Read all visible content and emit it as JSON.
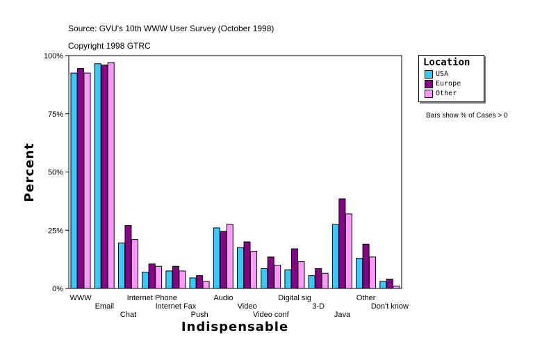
{
  "header": {
    "source": "Source: GVU's 10th WWW User Survey (October 1998)",
    "copyright": "Copyright 1998 GTRC"
  },
  "note": "Bars show % of Cases > 0",
  "colors": {
    "USA": "#33ccff",
    "Europe": "#880088",
    "Other": "#ff99ff"
  },
  "chart_data": {
    "type": "bar",
    "xlabel": "Indispensable",
    "ylabel": "Percent",
    "ylim": [
      0,
      100
    ],
    "yticks": [
      0,
      25,
      50,
      75,
      100
    ],
    "ytick_labels": [
      "0%",
      "25%",
      "50%",
      "75%",
      "100%"
    ],
    "legend_title": "Location",
    "legend_position": "right",
    "grid": false,
    "categories": [
      "WWW",
      "Email",
      "Chat",
      "Internet Phone",
      "Internet Fax",
      "Push",
      "Audio",
      "Video",
      "Video conf",
      "Digital sig",
      "3-D",
      "Java",
      "Other",
      "Don't know"
    ],
    "series": [
      {
        "name": "USA",
        "values": [
          92.5,
          96.5,
          19.5,
          7.0,
          7.5,
          4.5,
          26.0,
          17.5,
          8.5,
          8.0,
          5.5,
          27.5,
          13.0,
          3.0
        ]
      },
      {
        "name": "Europe",
        "values": [
          94.5,
          96.0,
          27.0,
          10.5,
          9.5,
          5.5,
          24.5,
          20.0,
          13.5,
          17.0,
          8.5,
          38.5,
          19.0,
          4.0
        ]
      },
      {
        "name": "Other",
        "values": [
          92.5,
          97.0,
          21.0,
          9.5,
          7.5,
          3.0,
          27.5,
          16.0,
          10.0,
          11.5,
          6.5,
          32.0,
          13.5,
          1.0
        ]
      }
    ]
  }
}
